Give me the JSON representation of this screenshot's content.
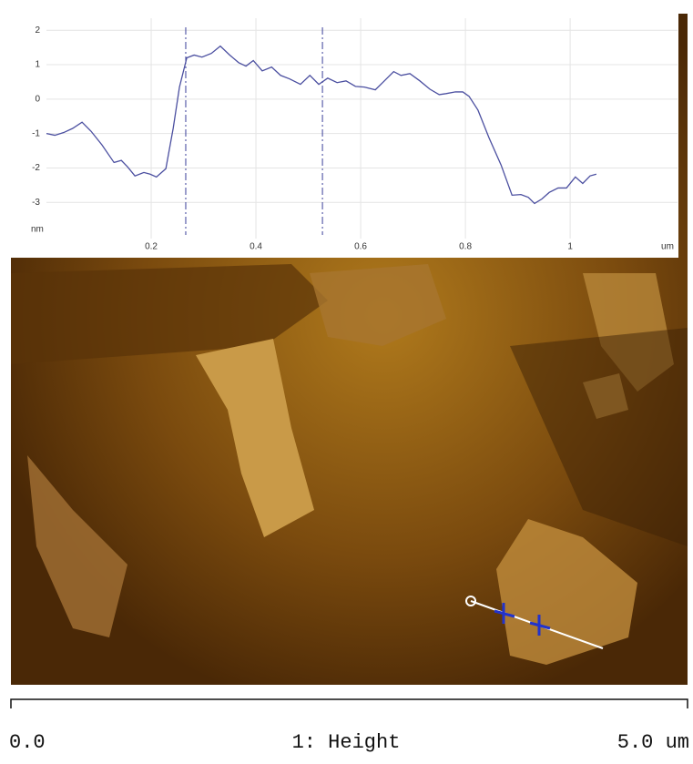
{
  "chart_data": {
    "type": "line",
    "xlabel": "um",
    "ylabel": "nm",
    "x": [
      0,
      0.016,
      0.033,
      0.05,
      0.068,
      0.085,
      0.106,
      0.129,
      0.143,
      0.155,
      0.169,
      0.186,
      0.198,
      0.21,
      0.228,
      0.242,
      0.254,
      0.268,
      0.282,
      0.297,
      0.315,
      0.332,
      0.35,
      0.367,
      0.381,
      0.395,
      0.412,
      0.43,
      0.447,
      0.464,
      0.485,
      0.503,
      0.52,
      0.537,
      0.555,
      0.572,
      0.59,
      0.607,
      0.628,
      0.642,
      0.663,
      0.677,
      0.694,
      0.713,
      0.732,
      0.75,
      0.763,
      0.781,
      0.795,
      0.807,
      0.824,
      0.845,
      0.868,
      0.889,
      0.906,
      0.92,
      0.932,
      0.946,
      0.96,
      0.977,
      0.993,
      1.01,
      1.024,
      1.038,
      1.05
    ],
    "series": [
      {
        "color": "#4b4fa0",
        "values": [
          -1.0,
          -1.05,
          -0.97,
          -0.85,
          -0.67,
          -0.93,
          -1.33,
          -1.84,
          -1.78,
          -1.97,
          -2.23,
          -2.13,
          -2.18,
          -2.26,
          -2.02,
          -0.85,
          0.35,
          1.2,
          1.28,
          1.22,
          1.33,
          1.54,
          1.28,
          1.06,
          0.96,
          1.12,
          0.82,
          0.93,
          0.69,
          0.59,
          0.43,
          0.69,
          0.43,
          0.61,
          0.48,
          0.53,
          0.37,
          0.35,
          0.27,
          0.48,
          0.8,
          0.69,
          0.74,
          0.53,
          0.29,
          0.13,
          0.16,
          0.21,
          0.21,
          0.08,
          -0.32,
          -1.12,
          -1.91,
          -2.79,
          -2.77,
          -2.85,
          -3.03,
          -2.9,
          -2.71,
          -2.58,
          -2.58,
          -2.26,
          -2.45,
          -2.23,
          -2.18
        ]
      }
    ],
    "cursors": [
      0.266,
      0.527
    ],
    "xlim": [
      0,
      1.205
    ],
    "ylim": [
      -4.05,
      2.35
    ],
    "xticks": [
      0.2,
      0.4,
      0.6,
      0.8,
      1
    ],
    "yticks": [
      -3,
      -2,
      -1,
      0,
      1,
      2
    ],
    "grid": true
  },
  "scale_bar": {
    "start": "0.0",
    "title": "1: Height",
    "end": "5.0 um"
  }
}
